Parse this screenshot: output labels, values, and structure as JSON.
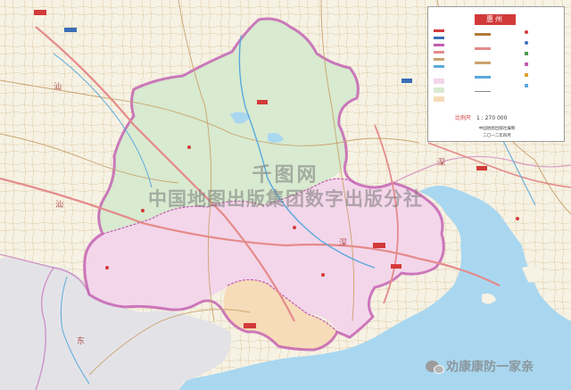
{
  "map": {
    "colors": {
      "ocean": "#a9d7f0",
      "land_outside": "#f6f2e4",
      "neighbor_gray": "#e3e3e7",
      "district_north": "#d8ead0",
      "district_central": "#f3d6ea",
      "district_south": "#f6dcb8",
      "boundary": "#c25bb0",
      "roads": "#c9a36d",
      "highway": "#e58b8b",
      "rivers": "#5aa9dc",
      "legend_accent": "#d23a3a"
    },
    "legend": {
      "title": "惠州",
      "scale_label": "比例尺",
      "scale_value": "1 : 270 000",
      "publisher": "中国地图出版社编制",
      "edition": "二〇一二年四月"
    },
    "labels": {
      "big_char": "汕",
      "coast_char": "深",
      "right_char": "深",
      "bottom_char": "东"
    },
    "watermark": {
      "line1": "千图网",
      "line2": "中国地图出版集团数字出版分社"
    },
    "wechat": {
      "icon": "wechat-icon",
      "text": "劝康康防一家亲"
    }
  }
}
